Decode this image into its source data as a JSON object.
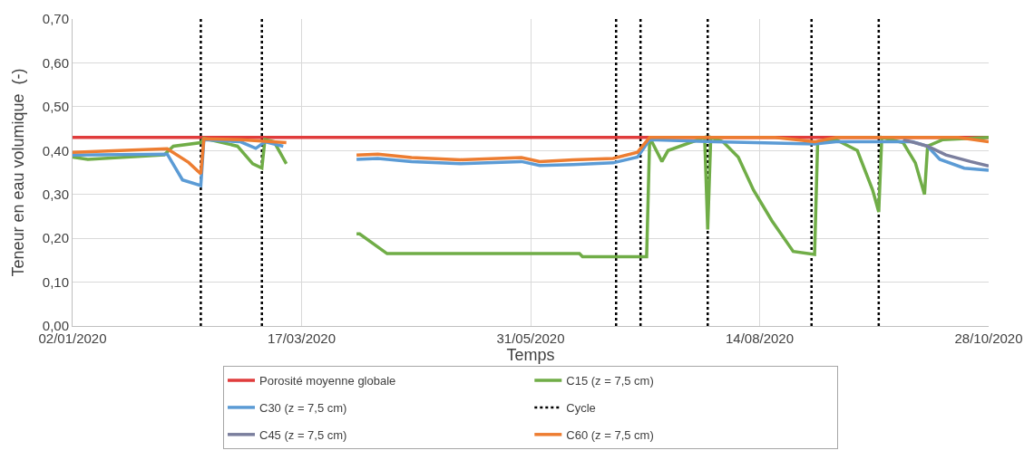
{
  "chart_data": {
    "type": "line",
    "xlabel": "Temps",
    "ylabel": "Teneur en eau volumique  (-)",
    "xlim": [
      "2020-01-02",
      "2020-10-28"
    ],
    "xticks": [
      {
        "value": "2020-01-02",
        "label": "02/01/2020"
      },
      {
        "value": "2020-03-17",
        "label": "17/03/2020"
      },
      {
        "value": "2020-05-31",
        "label": "31/05/2020"
      },
      {
        "value": "2020-08-14",
        "label": "14/08/2020"
      },
      {
        "value": "2020-10-28",
        "label": "28/10/2020"
      }
    ],
    "ylim": [
      0,
      0.7
    ],
    "yticks": [
      {
        "value": 0,
        "label": "0,00"
      },
      {
        "value": 0.1,
        "label": "0,10"
      },
      {
        "value": 0.2,
        "label": "0,20"
      },
      {
        "value": 0.3,
        "label": "0,30"
      },
      {
        "value": 0.4,
        "label": "0,40"
      },
      {
        "value": 0.5,
        "label": "0,50"
      },
      {
        "value": 0.6,
        "label": "0,60"
      },
      {
        "value": 0.7,
        "label": "0,70"
      }
    ],
    "grid": true,
    "legend": "bottom",
    "ref_lines": [
      {
        "axis": "x",
        "value": "2020-02-13",
        "label": "Cycle",
        "color": "#000000",
        "line_style": "dotted"
      },
      {
        "axis": "x",
        "value": "2020-03-04",
        "color": "#000000",
        "line_style": "dotted"
      },
      {
        "axis": "x",
        "value": "2020-06-28",
        "color": "#000000",
        "line_style": "dotted"
      },
      {
        "axis": "x",
        "value": "2020-07-06",
        "color": "#000000",
        "line_style": "dotted"
      },
      {
        "axis": "x",
        "value": "2020-07-28",
        "color": "#000000",
        "line_style": "dotted"
      },
      {
        "axis": "x",
        "value": "2020-08-31",
        "color": "#000000",
        "line_style": "dotted"
      },
      {
        "axis": "x",
        "value": "2020-09-22",
        "color": "#000000",
        "line_style": "dotted"
      }
    ],
    "series": [
      {
        "name": "Porosité moyenne globale",
        "color": "#e03c3c",
        "x": [
          "2020-01-02",
          "2020-10-28"
        ],
        "values": [
          0.43,
          0.43
        ]
      },
      {
        "name": "C15 (z = 7,5 cm)",
        "color": "#70ad47",
        "x": [
          "2020-01-02",
          "2020-01-07",
          "2020-02-01",
          "2020-02-04",
          "2020-02-13",
          "2020-02-14",
          "2020-02-25",
          "2020-03-01",
          "2020-03-04",
          "2020-03-05",
          "2020-03-08",
          "2020-03-12",
          "2020-03-25",
          "2020-04-04",
          "2020-04-05",
          "2020-04-14",
          "2020-06-16",
          "2020-06-17",
          "2020-07-08",
          "2020-07-09",
          "2020-07-13",
          "2020-07-15",
          "2020-07-27",
          "2020-07-28",
          "2020-07-29",
          "2020-08-02",
          "2020-08-07",
          "2020-08-12",
          "2020-08-18",
          "2020-08-25",
          "2020-09-01",
          "2020-09-02",
          "2020-09-08",
          "2020-09-15",
          "2020-09-20",
          "2020-09-22",
          "2020-09-23",
          "2020-09-30",
          "2020-10-04",
          "2020-10-07",
          "2020-10-08",
          "2020-10-13",
          "2020-10-28"
        ],
        "values": [
          0.385,
          0.38,
          0.39,
          0.41,
          0.418,
          0.428,
          0.41,
          0.37,
          0.36,
          0.425,
          0.42,
          0.37,
          null,
          0.21,
          0.21,
          0.165,
          0.165,
          0.158,
          0.158,
          0.43,
          0.375,
          0.4,
          0.43,
          0.22,
          0.43,
          0.42,
          0.385,
          0.31,
          0.24,
          0.17,
          0.163,
          0.42,
          0.425,
          0.4,
          0.31,
          0.26,
          0.43,
          0.418,
          0.372,
          0.3,
          0.41,
          0.425,
          0.43
        ]
      },
      {
        "name": "C30 (z = 7,5 cm)",
        "color": "#5b9bd5",
        "x": [
          "2020-01-02",
          "2020-02-02",
          "2020-02-07",
          "2020-02-13",
          "2020-02-14",
          "2020-02-26",
          "2020-03-02",
          "2020-03-05",
          "2020-03-11",
          "2020-03-25",
          "2020-04-04",
          "2020-04-11",
          "2020-04-22",
          "2020-05-08",
          "2020-05-28",
          "2020-06-03",
          "2020-06-14",
          "2020-06-27",
          "2020-07-05",
          "2020-07-09",
          "2020-07-30",
          "2020-09-01",
          "2020-09-08",
          "2020-10-03",
          "2020-10-08",
          "2020-10-12",
          "2020-10-20",
          "2020-10-28"
        ],
        "values": [
          0.39,
          0.392,
          0.333,
          0.32,
          0.425,
          0.42,
          0.405,
          0.42,
          0.41,
          null,
          0.38,
          0.382,
          0.375,
          0.37,
          0.375,
          0.366,
          0.368,
          0.372,
          0.385,
          0.425,
          0.42,
          0.415,
          0.42,
          0.42,
          0.41,
          0.38,
          0.36,
          0.355
        ]
      },
      {
        "name": "C45 (z = 7,5 cm)",
        "color": "#7b7f9e",
        "x": [
          "2020-09-30",
          "2020-10-08",
          "2020-10-14",
          "2020-10-22",
          "2020-10-28"
        ],
        "values": [
          0.425,
          0.41,
          0.39,
          0.375,
          0.365
        ]
      },
      {
        "name": "C60 (z = 7,5 cm)",
        "color": "#ed7d31",
        "x": [
          "2020-01-02",
          "2020-02-02",
          "2020-02-09",
          "2020-02-13",
          "2020-02-14",
          "2020-02-26",
          "2020-03-12",
          "2020-03-25",
          "2020-04-04",
          "2020-04-11",
          "2020-04-22",
          "2020-05-08",
          "2020-05-28",
          "2020-06-03",
          "2020-06-14",
          "2020-06-27",
          "2020-07-05",
          "2020-07-09",
          "2020-08-19",
          "2020-09-01",
          "2020-09-08",
          "2020-10-18",
          "2020-10-28"
        ],
        "values": [
          0.396,
          0.404,
          0.373,
          0.347,
          0.427,
          0.425,
          0.418,
          null,
          0.39,
          0.392,
          0.384,
          0.379,
          0.384,
          0.375,
          0.379,
          0.382,
          0.396,
          0.43,
          0.43,
          0.42,
          0.43,
          0.43,
          0.42
        ]
      }
    ]
  }
}
